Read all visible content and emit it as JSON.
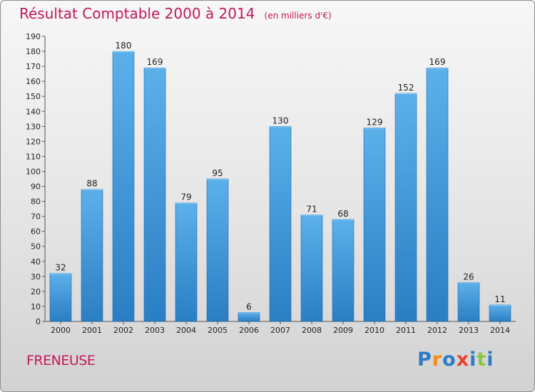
{
  "title": "Résultat Comptable 2000 à 2014",
  "subtitle": "(en milliers d'€)",
  "location": "FRENEUSE",
  "logo": {
    "text": "Proxiti",
    "letter_colors": [
      "#2e7bc4",
      "#f28c1a",
      "#2e7bc4",
      "#e8412c",
      "#2e7bc4",
      "#8cc63f",
      "#2e7bc4"
    ]
  },
  "colors": {
    "title": "#c2185b",
    "bar_top": "#5cb0ea",
    "bar_bottom": "#2a7ec3",
    "bar_edge": "#1f6aa8"
  },
  "chart_data": {
    "type": "bar",
    "categories": [
      "2000",
      "2001",
      "2002",
      "2003",
      "2004",
      "2005",
      "2006",
      "2007",
      "2008",
      "2009",
      "2010",
      "2011",
      "2012",
      "2013",
      "2014"
    ],
    "values": [
      32,
      88,
      180,
      169,
      79,
      95,
      6,
      130,
      71,
      68,
      129,
      152,
      169,
      26,
      11
    ],
    "ylim": [
      0,
      190
    ],
    "yticks": [
      0,
      10,
      20,
      30,
      40,
      50,
      60,
      70,
      80,
      90,
      100,
      110,
      120,
      130,
      140,
      150,
      160,
      170,
      180,
      190
    ],
    "grid": false
  }
}
